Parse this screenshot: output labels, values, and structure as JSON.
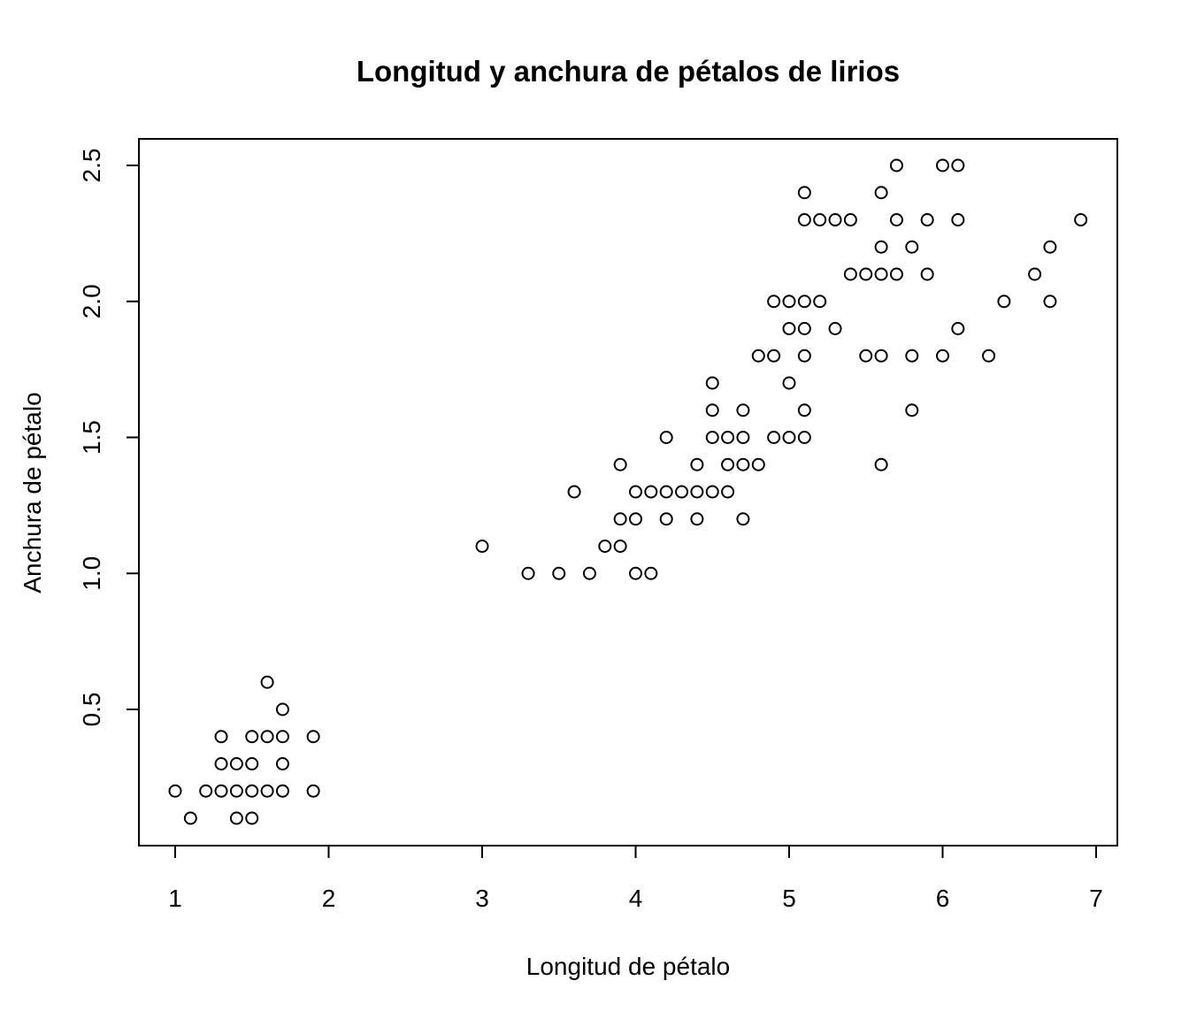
{
  "chart_data": {
    "type": "scatter",
    "title": "Longitud y anchura de pétalos de lirios",
    "xlabel": "Longitud de pétalo",
    "ylabel": "Anchura de pétalo",
    "xlim": [
      1,
      6.9
    ],
    "ylim": [
      0.1,
      2.5
    ],
    "x_ticks": [
      1,
      2,
      3,
      4,
      5,
      6,
      7
    ],
    "x_tick_labels": [
      "1",
      "2",
      "3",
      "4",
      "5",
      "6",
      "7"
    ],
    "y_ticks": [
      0.5,
      1.0,
      1.5,
      2.0,
      2.5
    ],
    "y_tick_labels": [
      "0.5",
      "1.0",
      "1.5",
      "2.0",
      "2.5"
    ],
    "grid": false,
    "marker": "open-circle",
    "points": [
      [
        1.0,
        0.2
      ],
      [
        1.1,
        0.1
      ],
      [
        1.2,
        0.2
      ],
      [
        1.3,
        0.2
      ],
      [
        1.3,
        0.3
      ],
      [
        1.3,
        0.4
      ],
      [
        1.4,
        0.1
      ],
      [
        1.4,
        0.2
      ],
      [
        1.4,
        0.3
      ],
      [
        1.5,
        0.1
      ],
      [
        1.5,
        0.2
      ],
      [
        1.5,
        0.3
      ],
      [
        1.5,
        0.4
      ],
      [
        1.6,
        0.2
      ],
      [
        1.6,
        0.4
      ],
      [
        1.6,
        0.6
      ],
      [
        1.7,
        0.2
      ],
      [
        1.7,
        0.3
      ],
      [
        1.7,
        0.4
      ],
      [
        1.7,
        0.5
      ],
      [
        1.9,
        0.2
      ],
      [
        1.9,
        0.4
      ],
      [
        3.0,
        1.1
      ],
      [
        3.3,
        1.0
      ],
      [
        3.5,
        1.0
      ],
      [
        3.6,
        1.3
      ],
      [
        3.7,
        1.0
      ],
      [
        3.8,
        1.1
      ],
      [
        3.9,
        1.1
      ],
      [
        3.9,
        1.2
      ],
      [
        3.9,
        1.4
      ],
      [
        4.0,
        1.0
      ],
      [
        4.0,
        1.2
      ],
      [
        4.0,
        1.3
      ],
      [
        4.1,
        1.0
      ],
      [
        4.1,
        1.3
      ],
      [
        4.2,
        1.2
      ],
      [
        4.2,
        1.3
      ],
      [
        4.2,
        1.5
      ],
      [
        4.3,
        1.3
      ],
      [
        4.4,
        1.2
      ],
      [
        4.4,
        1.3
      ],
      [
        4.4,
        1.4
      ],
      [
        4.5,
        1.3
      ],
      [
        4.5,
        1.5
      ],
      [
        4.5,
        1.6
      ],
      [
        4.5,
        1.7
      ],
      [
        4.6,
        1.3
      ],
      [
        4.6,
        1.4
      ],
      [
        4.6,
        1.5
      ],
      [
        4.7,
        1.2
      ],
      [
        4.7,
        1.4
      ],
      [
        4.7,
        1.5
      ],
      [
        4.7,
        1.6
      ],
      [
        4.8,
        1.4
      ],
      [
        4.8,
        1.8
      ],
      [
        4.9,
        1.5
      ],
      [
        4.9,
        1.8
      ],
      [
        4.9,
        2.0
      ],
      [
        5.0,
        1.5
      ],
      [
        5.0,
        1.7
      ],
      [
        5.0,
        1.9
      ],
      [
        5.0,
        2.0
      ],
      [
        5.1,
        1.5
      ],
      [
        5.1,
        1.6
      ],
      [
        5.1,
        1.8
      ],
      [
        5.1,
        1.9
      ],
      [
        5.1,
        2.0
      ],
      [
        5.1,
        2.3
      ],
      [
        5.1,
        2.4
      ],
      [
        5.2,
        2.0
      ],
      [
        5.2,
        2.3
      ],
      [
        5.3,
        1.9
      ],
      [
        5.3,
        2.3
      ],
      [
        5.4,
        2.1
      ],
      [
        5.4,
        2.3
      ],
      [
        5.5,
        1.8
      ],
      [
        5.5,
        2.1
      ],
      [
        5.6,
        1.4
      ],
      [
        5.6,
        1.8
      ],
      [
        5.6,
        2.1
      ],
      [
        5.6,
        2.2
      ],
      [
        5.6,
        2.4
      ],
      [
        5.7,
        2.1
      ],
      [
        5.7,
        2.3
      ],
      [
        5.7,
        2.5
      ],
      [
        5.8,
        1.6
      ],
      [
        5.8,
        1.8
      ],
      [
        5.8,
        2.2
      ],
      [
        5.9,
        2.1
      ],
      [
        5.9,
        2.3
      ],
      [
        6.0,
        1.8
      ],
      [
        6.0,
        2.5
      ],
      [
        6.1,
        1.9
      ],
      [
        6.1,
        2.3
      ],
      [
        6.1,
        2.5
      ],
      [
        6.3,
        1.8
      ],
      [
        6.4,
        2.0
      ],
      [
        6.6,
        2.1
      ],
      [
        6.7,
        2.0
      ],
      [
        6.7,
        2.2
      ],
      [
        6.9,
        2.3
      ]
    ]
  }
}
